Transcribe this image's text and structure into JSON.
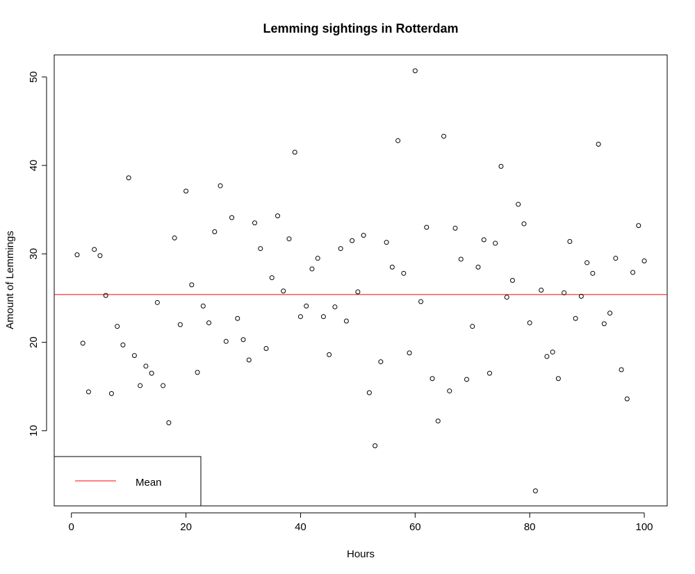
{
  "chart_data": {
    "type": "scatter",
    "title": "Lemming sightings in Rotterdam",
    "xlabel": "Hours",
    "ylabel": "Amount of Lemmings",
    "xlim": [
      -3,
      104
    ],
    "ylim": [
      1.5,
      52.5
    ],
    "xticks": [
      0,
      20,
      40,
      60,
      80,
      100
    ],
    "yticks": [
      10,
      20,
      30,
      40,
      50
    ],
    "point_color": "#000000",
    "mean_line": {
      "value": 25.4,
      "color": "#ff0000",
      "label": "Mean"
    },
    "legend": {
      "position": "bottom-left",
      "label": "Mean",
      "color": "#ff0000"
    },
    "grid": false,
    "series": [
      {
        "x": [
          1,
          2,
          3,
          4,
          5,
          6,
          7,
          8,
          9,
          10,
          11,
          12,
          13,
          14,
          15,
          16,
          17,
          18,
          19,
          20,
          21,
          22,
          23,
          24,
          25,
          26,
          27,
          28,
          29,
          30,
          31,
          32,
          33,
          34,
          35,
          36,
          37,
          38,
          39,
          40,
          41,
          42,
          43,
          44,
          45,
          46,
          47,
          48,
          49,
          50,
          51,
          52,
          53,
          54,
          55,
          56,
          57,
          58,
          59,
          60,
          61,
          62,
          63,
          64,
          65,
          66,
          67,
          68,
          69,
          70,
          71,
          72,
          73,
          74,
          75,
          76,
          77,
          78,
          79,
          80,
          81,
          82,
          83,
          84,
          85,
          86,
          87,
          88,
          89,
          90,
          91,
          92,
          93,
          94,
          95,
          96,
          97,
          98,
          99,
          100
        ],
        "y": [
          29.9,
          19.9,
          14.4,
          30.5,
          29.8,
          25.3,
          14.2,
          21.8,
          19.7,
          38.6,
          18.5,
          15.1,
          17.3,
          16.5,
          24.5,
          15.1,
          10.9,
          31.8,
          22.0,
          37.1,
          26.5,
          16.6,
          24.1,
          22.2,
          32.5,
          37.7,
          20.1,
          34.1,
          22.7,
          20.3,
          18.0,
          33.5,
          30.6,
          19.3,
          27.3,
          34.3,
          25.8,
          31.7,
          41.5,
          22.9,
          24.1,
          28.3,
          29.5,
          22.9,
          18.6,
          24.0,
          30.6,
          22.4,
          31.5,
          25.7,
          32.1,
          14.3,
          8.3,
          17.8,
          31.3,
          28.5,
          42.8,
          27.8,
          18.8,
          50.7,
          24.6,
          33.0,
          15.9,
          11.1,
          43.3,
          14.5,
          32.9,
          29.4,
          15.8,
          21.8,
          28.5,
          31.6,
          16.5,
          31.2,
          39.9,
          25.1,
          27.0,
          35.6,
          33.4,
          22.2,
          3.2,
          25.9,
          18.4,
          18.9,
          15.9,
          25.6,
          31.4,
          22.7,
          25.2,
          29.0,
          27.8,
          42.4,
          22.1,
          23.3,
          29.5,
          16.9,
          13.6,
          27.9,
          33.2,
          29.2
        ]
      }
    ]
  }
}
